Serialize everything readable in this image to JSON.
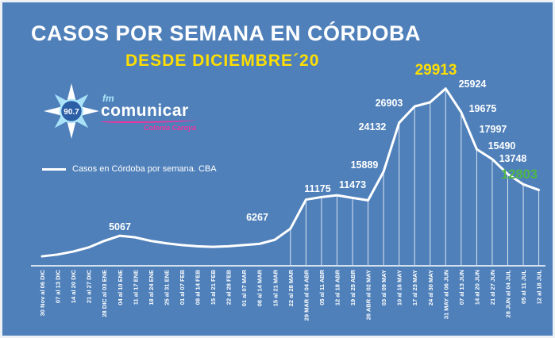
{
  "header": {
    "title": "CASOS POR SEMANA EN CÓRDOBA",
    "subtitle": "DESDE DICIEMBRE´20"
  },
  "logo": {
    "frequency": "90.7",
    "fm": "fm",
    "name": "comunicar",
    "tagline": "Colonia Caroya"
  },
  "legend": {
    "label": "Casos en Córdoba por semana. CBA"
  },
  "colors": {
    "background": "#4f80ba",
    "line": "#ffffff",
    "title": "#ffffff",
    "subtitle_yellow": "#ffdf00",
    "peak_label_yellow": "#ffdf00",
    "latest_label_green": "#4eb748",
    "logo_magenta": "#f0339e",
    "logo_cyan": "#aee7fb"
  },
  "chart_data": {
    "type": "line",
    "title": "CASOS POR SEMANA EN CÓRDOBA DESDE DICIEMBRE´20",
    "xlabel": "",
    "ylabel": "",
    "ylim": [
      0,
      30000
    ],
    "grid": false,
    "legend_position": "left-middle",
    "x_tick_rotation": 90,
    "categories": [
      "30 Nov al 06 DIC",
      "07 al 13 DIC",
      "14 al 20 DIC",
      "21 al 27 DIC",
      "28 DIC al 03 ENE",
      "04 al 10 ENE",
      "11 al 17 ENE",
      "18 al 24 ENE",
      "25 al 31 ENE",
      "01 al 07 FEB",
      "08 al 14 FEB",
      "15 al 21 FEB",
      "22 al 28 FEB",
      "01 al 07 MAR",
      "08 al 14 MAR",
      "15 al 21 MAR",
      "22 al 28 MAR",
      "29 MAR al 04 ABR",
      "05 al 11 ABR",
      "12 al 18 ABR",
      "19 al 25 ABR",
      "26 ABR al 02 MAY",
      "03 al 09 MAY",
      "10 al 16 MAY",
      "17 al 23 MAY",
      "24 al 30 MAY",
      "31 MAY al 06 JUN",
      "07 al 13 JUN",
      "14 al 20 JUN",
      "21 al 27 JUN",
      "28 JUN al 04 JUL",
      "05 al 11 JUL",
      "12 al 18 JUL"
    ],
    "series": [
      {
        "name": "Casos en Córdoba por semana. CBA",
        "values": [
          1600,
          1900,
          2400,
          3100,
          4200,
          5067,
          4800,
          4200,
          3800,
          3500,
          3300,
          3200,
          3300,
          3500,
          3700,
          4400,
          6267,
          11175,
          11600,
          11900,
          11473,
          11050,
          15889,
          24132,
          26903,
          27600,
          29913,
          25924,
          19675,
          17997,
          15490,
          13748,
          12803
        ]
      }
    ],
    "point_labels": [
      {
        "index": 5,
        "text": "5067",
        "color": "#ffffff"
      },
      {
        "index": 16,
        "text": "6267",
        "color": "#ffffff"
      },
      {
        "index": 17,
        "text": "11175",
        "color": "#ffffff"
      },
      {
        "index": 20,
        "text": "11473",
        "color": "#ffffff"
      },
      {
        "index": 22,
        "text": "15889",
        "color": "#ffffff"
      },
      {
        "index": 23,
        "text": "24132",
        "color": "#ffffff"
      },
      {
        "index": 24,
        "text": "26903",
        "color": "#ffffff"
      },
      {
        "index": 26,
        "text": "29913",
        "color": "#ffdf00"
      },
      {
        "index": 27,
        "text": "25924",
        "color": "#ffffff"
      },
      {
        "index": 28,
        "text": "19675",
        "color": "#ffffff"
      },
      {
        "index": 29,
        "text": "17997",
        "color": "#ffffff"
      },
      {
        "index": 30,
        "text": "15490",
        "color": "#ffffff"
      },
      {
        "index": 31,
        "text": "13748",
        "color": "#ffffff"
      },
      {
        "index": 32,
        "text": "12803",
        "color": "#4eb748"
      }
    ]
  }
}
